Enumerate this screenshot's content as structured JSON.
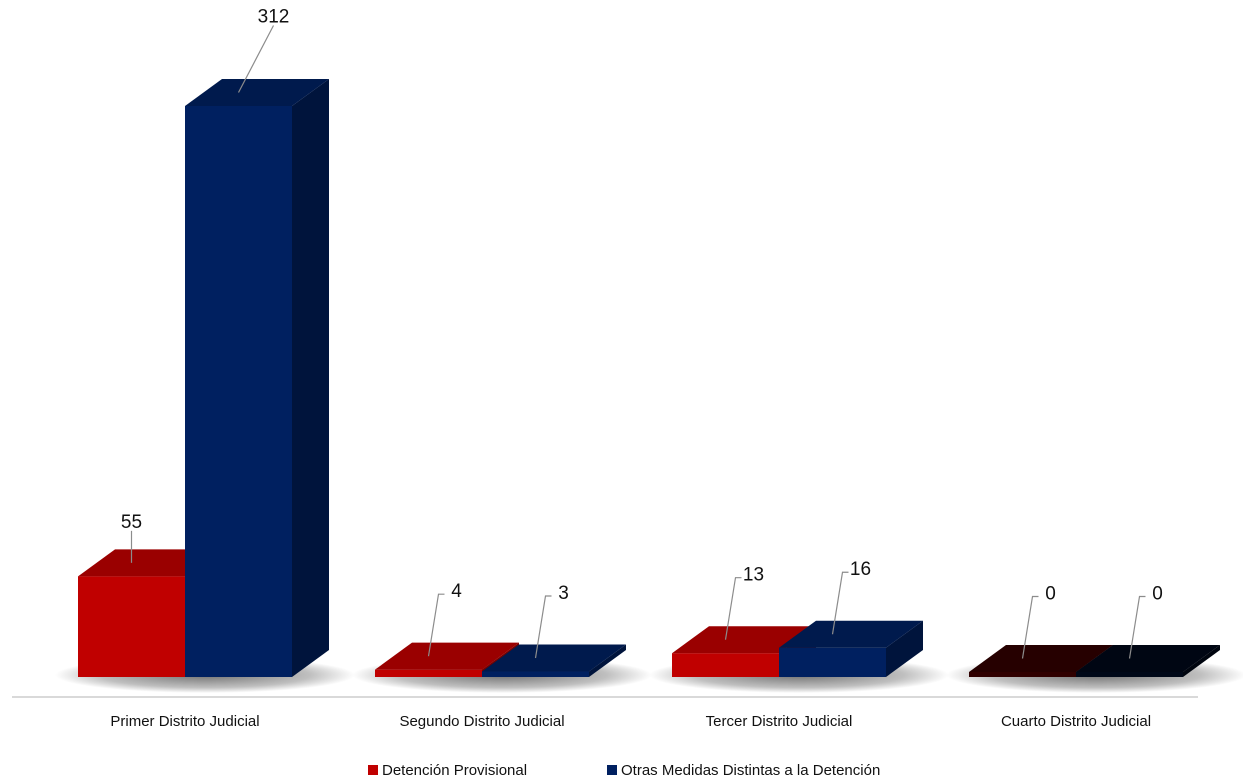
{
  "chart_data": {
    "type": "bar",
    "title": "",
    "xlabel": "",
    "ylabel": "",
    "categories": [
      "Primer Distrito Judicial",
      "Segundo Distrito Judicial",
      "Tercer Distrito Judicial",
      "Cuarto Distrito Judicial"
    ],
    "series": [
      {
        "name": "Detención Provisional",
        "values": [
          55,
          4,
          13,
          0
        ],
        "color": "#c00000"
      },
      {
        "name": "Otras Medidas Distintas a la Detención",
        "values": [
          312,
          3,
          16,
          0
        ],
        "color": "#002060"
      }
    ],
    "ylim": [
      0,
      312
    ],
    "grid": false,
    "legend": "bottom",
    "style": "3d-clustered-column"
  }
}
